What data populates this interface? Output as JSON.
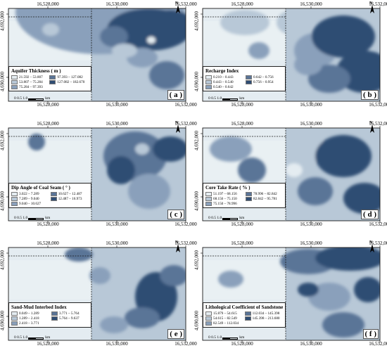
{
  "map_data": {
    "x_ticks": [
      "16,528,000",
      "16,530,000",
      "16,532,000"
    ],
    "y_ticks": [
      "4,692,000",
      "4,690,000"
    ],
    "north_label": "N",
    "scale": {
      "labels": [
        "0",
        "0.5",
        "1.0"
      ],
      "unit": "km"
    },
    "colors": {
      "frame": "#1a1a1a",
      "light": "#dce6ec",
      "mid": "#7f96b3",
      "dark": "#2b4a6f"
    },
    "panels": [
      {
        "id": "a",
        "label": "( a )",
        "title": "Aquifer Thickness ( m )",
        "legend": [
          {
            "text": "21.592 – 53.807",
            "color": "#e4ecf1"
          },
          {
            "text": "97.393 – 127.082",
            "color": "#5a7497"
          },
          {
            "text": "53.807 – 75.284",
            "color": "#b8c8d7"
          },
          {
            "text": "127.082 – 182.670",
            "color": "#2f4d73"
          },
          {
            "text": "75.284 – 97.393",
            "color": "#8aa0bb"
          }
        ]
      },
      {
        "id": "b",
        "label": "( b )",
        "title": "Recharge Index",
        "legend": [
          {
            "text": "0.210 – 0.443",
            "color": "#e4ecf1"
          },
          {
            "text": "0.642 – 0.756",
            "color": "#5a7497"
          },
          {
            "text": "0.443 – 0.540",
            "color": "#b8c8d7"
          },
          {
            "text": "0.756 – 0.954",
            "color": "#2f4d73"
          },
          {
            "text": "0.540 – 0.642",
            "color": "#8aa0bb"
          }
        ]
      },
      {
        "id": "c",
        "label": "( c )",
        "title": "Dip Angle of Coal Seam ( ° )",
        "legend": [
          {
            "text": "3.022 – 7.289",
            "color": "#e4ecf1"
          },
          {
            "text": "10.627 – 12.487",
            "color": "#5a7497"
          },
          {
            "text": "7.289 – 9.040",
            "color": "#b8c8d7"
          },
          {
            "text": "12.487 – 16.973",
            "color": "#2f4d73"
          },
          {
            "text": "9.040 – 10.627",
            "color": "#8aa0bb"
          }
        ]
      },
      {
        "id": "d",
        "label": "( d )",
        "title": "Core Take Rate ( % )",
        "legend": [
          {
            "text": "51.197 – 68.156",
            "color": "#e4ecf1"
          },
          {
            "text": "78.996 – 82.842",
            "color": "#5a7497"
          },
          {
            "text": "68.156 – 75.150",
            "color": "#b8c8d7"
          },
          {
            "text": "82.842 – 95.781",
            "color": "#2f4d73"
          },
          {
            "text": "75.150 – 78.996",
            "color": "#8aa0bb"
          }
        ]
      },
      {
        "id": "e",
        "label": "( e )",
        "title": "Sand-Mud Interbed Index",
        "legend": [
          {
            "text": "0.049 – 1.289",
            "color": "#e4ecf1"
          },
          {
            "text": "3.771 – 5.764",
            "color": "#5a7497"
          },
          {
            "text": "1.289 – 2.418",
            "color": "#b8c8d7"
          },
          {
            "text": "5.764 – 9.637",
            "color": "#2f4d73"
          },
          {
            "text": "2.418 – 3.771",
            "color": "#8aa0bb"
          }
        ]
      },
      {
        "id": "f",
        "label": "( f )",
        "title": "Lithological Coefficient of Sandstone",
        "legend": [
          {
            "text": "15.879 – 54.615",
            "color": "#e4ecf1"
          },
          {
            "text": "112.034 – 145.398",
            "color": "#5a7497"
          },
          {
            "text": "54.615 – 82.549",
            "color": "#b8c8d7"
          },
          {
            "text": "145.398 – 213.680",
            "color": "#2f4d73"
          },
          {
            "text": "82.549 – 112.034",
            "color": "#8aa0bb"
          }
        ]
      }
    ]
  }
}
